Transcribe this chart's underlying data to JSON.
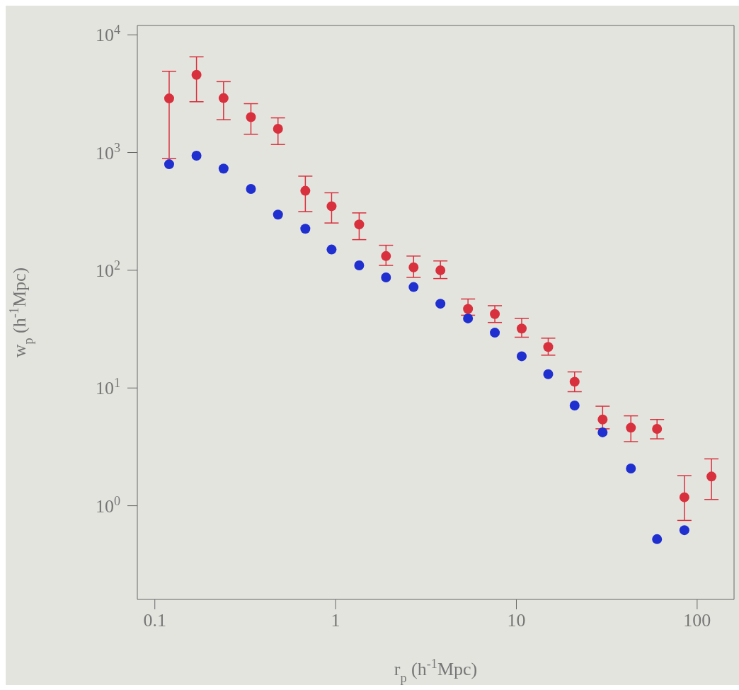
{
  "chart_data": {
    "type": "scatter",
    "xlabel": "r$_{p}$ (h$^{-1}$Mpc)",
    "ylabel": "w$_{p}$ (h$^{-1}$Mpc)",
    "log": "xy",
    "grid": false,
    "legend": false,
    "marker": "circle",
    "xlim": [
      0.08,
      160
    ],
    "xticks": [
      0.1,
      1,
      10,
      100
    ],
    "ylim": [
      0.16,
      12000
    ],
    "yticks": [
      {
        "value": 1,
        "label": "10$^{0}$"
      },
      {
        "value": 10,
        "label": "10$^{1}$"
      },
      {
        "value": 100,
        "label": "10$^{2}$"
      },
      {
        "value": 1000,
        "label": "10$^{3}$"
      },
      {
        "value": 10000,
        "label": "10$^{4}$"
      }
    ],
    "series": [
      {
        "color": "#d8303c",
        "x": [
          0.12,
          0.17,
          0.24,
          0.34,
          0.48,
          0.68,
          0.95,
          1.35,
          1.9,
          2.7,
          3.8,
          5.4,
          7.6,
          10.7,
          15,
          21,
          30,
          43,
          60,
          85,
          120
        ],
        "values": [
          2880,
          4570,
          2900,
          2000,
          1590,
          473,
          350,
          245,
          132,
          106,
          100,
          47,
          42.5,
          32,
          22.3,
          11.3,
          5.4,
          4.6,
          4.5,
          1.18,
          1.77
        ],
        "errors": [
          [
            890,
            4900
          ],
          [
            2700,
            6500
          ],
          [
            1900,
            4000
          ],
          [
            1430,
            2600
          ],
          [
            1170,
            1970
          ],
          [
            315,
            630
          ],
          [
            252,
            455
          ],
          [
            182,
            307
          ],
          [
            110,
            163
          ],
          [
            87,
            132
          ],
          [
            85,
            120
          ],
          [
            41.5,
            57
          ],
          [
            36,
            50
          ],
          [
            27,
            39
          ],
          [
            19,
            26.5
          ],
          [
            9.3,
            13.7
          ],
          [
            4.5,
            7
          ],
          [
            3.5,
            5.8
          ],
          [
            3.7,
            5.4
          ],
          [
            0.75,
            1.8
          ],
          [
            1.13,
            2.5
          ]
        ]
      },
      {
        "color": "#1f2fd0",
        "x": [
          0.12,
          0.17,
          0.24,
          0.34,
          0.48,
          0.68,
          0.95,
          1.35,
          1.9,
          2.7,
          3.8,
          5.4,
          7.6,
          10.7,
          15,
          21,
          30,
          43,
          60,
          85
        ],
        "values": [
          795,
          940,
          730,
          490,
          297,
          225,
          150,
          110,
          87,
          72,
          52,
          39,
          29.5,
          18.6,
          13.1,
          7.1,
          4.2,
          2.07,
          0.52,
          0.62
        ]
      }
    ]
  }
}
